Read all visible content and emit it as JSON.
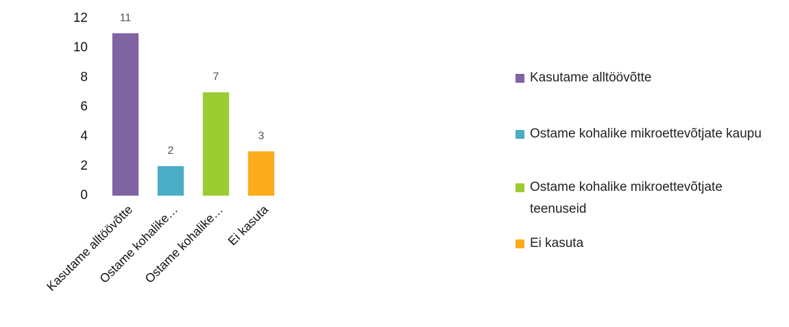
{
  "chart_data": {
    "type": "bar",
    "categories": [
      "Kasutame alltöövõtte",
      "Ostame kohalike…",
      "Ostame kohalike…",
      "Ei kasuta"
    ],
    "values": [
      11,
      2,
      7,
      3
    ],
    "colors": [
      "#8064a2",
      "#4bacc6",
      "#9bcc32",
      "#fbab1c"
    ],
    "legend": [
      "Kasutame alltöövõtte",
      "Ostame kohalike mikroettevõtjate kaupu",
      "Ostame kohalike mikroettevõtjate teenuseid",
      "Ei kasuta"
    ],
    "ylim": [
      0,
      12
    ],
    "yticks": [
      0,
      2,
      4,
      6,
      8,
      10,
      12
    ],
    "grid": false
  }
}
